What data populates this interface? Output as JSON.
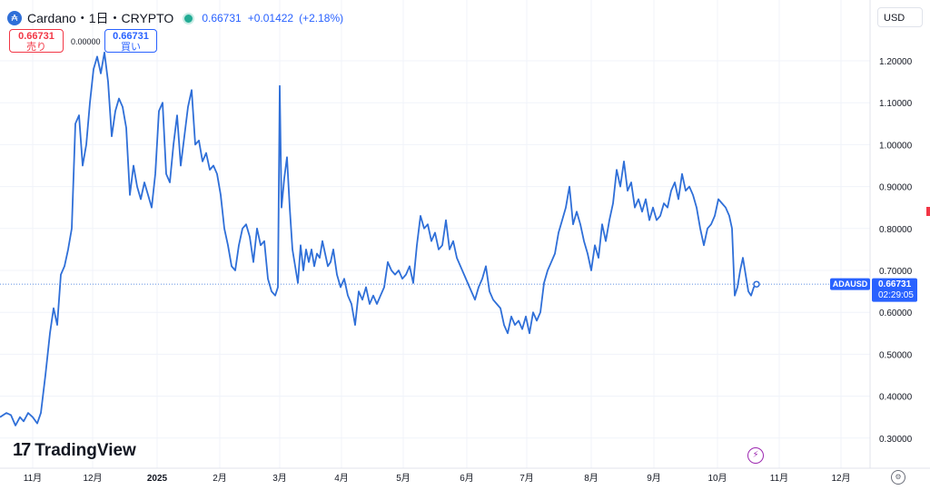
{
  "header": {
    "symbol": "Cardano・1日・CRYPTO",
    "last_price": "0.66731",
    "change": "+0.01422",
    "change_pct": "(+2.18%)",
    "coin_icon": "cardano-icon"
  },
  "trade": {
    "sell_price": "0.66731",
    "sell_label": "売り",
    "spread": "0.00000",
    "buy_price": "0.66731",
    "buy_label": "買い"
  },
  "currency": "USD",
  "brand": "TradingView",
  "price_label": {
    "ticker": "ADAUSD",
    "price": "0.66731",
    "countdown": "02:29:05"
  },
  "colors": {
    "line": "#2f6fd8",
    "accent": "#2962ff",
    "sell": "#f23645",
    "live": "#22ab94"
  },
  "chart_data": {
    "type": "line",
    "series": [
      {
        "values": [
          [
            0,
            0.35
          ],
          [
            7,
            0.36
          ],
          [
            12,
            0.355
          ],
          [
            17,
            0.33
          ],
          [
            22,
            0.35
          ],
          [
            26,
            0.34
          ],
          [
            31,
            0.36
          ],
          [
            36,
            0.35
          ],
          [
            41,
            0.335
          ],
          [
            45,
            0.36
          ],
          [
            50,
            0.45
          ],
          [
            55,
            0.55
          ],
          [
            59,
            0.61
          ],
          [
            63,
            0.57
          ],
          [
            67,
            0.69
          ],
          [
            71,
            0.71
          ],
          [
            75,
            0.75
          ],
          [
            79,
            0.8
          ],
          [
            83,
            1.05
          ],
          [
            87,
            1.07
          ],
          [
            91,
            0.95
          ],
          [
            95,
            1.0
          ],
          [
            99,
            1.1
          ],
          [
            103,
            1.18
          ],
          [
            107,
            1.21
          ],
          [
            111,
            1.17
          ],
          [
            115,
            1.22
          ],
          [
            119,
            1.15
          ],
          [
            123,
            1.02
          ],
          [
            127,
            1.08
          ],
          [
            131,
            1.11
          ],
          [
            135,
            1.09
          ],
          [
            139,
            1.04
          ],
          [
            143,
            0.88
          ],
          [
            147,
            0.95
          ],
          [
            151,
            0.9
          ],
          [
            155,
            0.87
          ],
          [
            159,
            0.91
          ],
          [
            163,
            0.88
          ],
          [
            167,
            0.85
          ],
          [
            171,
            0.93
          ],
          [
            175,
            1.08
          ],
          [
            179,
            1.1
          ],
          [
            183,
            0.93
          ],
          [
            187,
            0.91
          ],
          [
            191,
            1.0
          ],
          [
            195,
            1.07
          ],
          [
            199,
            0.95
          ],
          [
            203,
            1.02
          ],
          [
            207,
            1.09
          ],
          [
            211,
            1.13
          ],
          [
            215,
            1.0
          ],
          [
            219,
            1.01
          ],
          [
            223,
            0.96
          ],
          [
            227,
            0.98
          ],
          [
            231,
            0.94
          ],
          [
            235,
            0.95
          ],
          [
            239,
            0.93
          ],
          [
            243,
            0.88
          ],
          [
            247,
            0.8
          ],
          [
            251,
            0.76
          ],
          [
            255,
            0.71
          ],
          [
            259,
            0.7
          ],
          [
            263,
            0.76
          ],
          [
            267,
            0.8
          ],
          [
            271,
            0.81
          ],
          [
            275,
            0.78
          ],
          [
            279,
            0.72
          ],
          [
            283,
            0.8
          ],
          [
            287,
            0.76
          ],
          [
            291,
            0.77
          ],
          [
            295,
            0.68
          ],
          [
            299,
            0.65
          ],
          [
            303,
            0.64
          ],
          [
            306,
            0.66
          ],
          [
            308,
            1.14
          ],
          [
            310,
            0.85
          ],
          [
            313,
            0.92
          ],
          [
            316,
            0.97
          ],
          [
            319,
            0.85
          ],
          [
            322,
            0.75
          ],
          [
            325,
            0.71
          ],
          [
            328,
            0.67
          ],
          [
            331,
            0.76
          ],
          [
            334,
            0.7
          ],
          [
            337,
            0.75
          ],
          [
            340,
            0.72
          ],
          [
            343,
            0.75
          ],
          [
            346,
            0.71
          ],
          [
            349,
            0.74
          ],
          [
            352,
            0.73
          ],
          [
            355,
            0.77
          ],
          [
            358,
            0.74
          ],
          [
            361,
            0.71
          ],
          [
            364,
            0.72
          ],
          [
            367,
            0.75
          ],
          [
            371,
            0.69
          ],
          [
            375,
            0.66
          ],
          [
            379,
            0.68
          ],
          [
            383,
            0.64
          ],
          [
            387,
            0.62
          ],
          [
            391,
            0.57
          ],
          [
            395,
            0.65
          ],
          [
            399,
            0.63
          ],
          [
            403,
            0.66
          ],
          [
            407,
            0.62
          ],
          [
            411,
            0.64
          ],
          [
            415,
            0.62
          ],
          [
            419,
            0.64
          ],
          [
            423,
            0.66
          ],
          [
            427,
            0.72
          ],
          [
            431,
            0.7
          ],
          [
            435,
            0.69
          ],
          [
            439,
            0.7
          ],
          [
            443,
            0.68
          ],
          [
            447,
            0.69
          ],
          [
            451,
            0.71
          ],
          [
            455,
            0.67
          ],
          [
            459,
            0.76
          ],
          [
            463,
            0.83
          ],
          [
            467,
            0.8
          ],
          [
            471,
            0.81
          ],
          [
            475,
            0.77
          ],
          [
            479,
            0.79
          ],
          [
            483,
            0.75
          ],
          [
            487,
            0.76
          ],
          [
            491,
            0.82
          ],
          [
            495,
            0.75
          ],
          [
            499,
            0.77
          ],
          [
            503,
            0.73
          ],
          [
            507,
            0.71
          ],
          [
            511,
            0.69
          ],
          [
            515,
            0.67
          ],
          [
            519,
            0.65
          ],
          [
            523,
            0.63
          ],
          [
            527,
            0.66
          ],
          [
            531,
            0.68
          ],
          [
            535,
            0.71
          ],
          [
            539,
            0.65
          ],
          [
            543,
            0.63
          ],
          [
            547,
            0.62
          ],
          [
            551,
            0.61
          ],
          [
            555,
            0.57
          ],
          [
            559,
            0.55
          ],
          [
            563,
            0.59
          ],
          [
            567,
            0.57
          ],
          [
            571,
            0.58
          ],
          [
            575,
            0.56
          ],
          [
            579,
            0.59
          ],
          [
            583,
            0.55
          ],
          [
            587,
            0.6
          ],
          [
            591,
            0.58
          ],
          [
            595,
            0.6
          ],
          [
            599,
            0.67
          ],
          [
            603,
            0.7
          ],
          [
            607,
            0.72
          ],
          [
            611,
            0.74
          ],
          [
            615,
            0.79
          ],
          [
            619,
            0.82
          ],
          [
            623,
            0.85
          ],
          [
            627,
            0.9
          ],
          [
            631,
            0.81
          ],
          [
            635,
            0.84
          ],
          [
            639,
            0.81
          ],
          [
            643,
            0.77
          ],
          [
            647,
            0.74
          ],
          [
            651,
            0.7
          ],
          [
            655,
            0.76
          ],
          [
            659,
            0.73
          ],
          [
            663,
            0.81
          ],
          [
            667,
            0.77
          ],
          [
            671,
            0.82
          ],
          [
            675,
            0.86
          ],
          [
            679,
            0.94
          ],
          [
            683,
            0.9
          ],
          [
            687,
            0.96
          ],
          [
            691,
            0.89
          ],
          [
            695,
            0.91
          ],
          [
            699,
            0.85
          ],
          [
            703,
            0.87
          ],
          [
            707,
            0.84
          ],
          [
            711,
            0.87
          ],
          [
            715,
            0.82
          ],
          [
            719,
            0.85
          ],
          [
            723,
            0.82
          ],
          [
            727,
            0.83
          ],
          [
            731,
            0.86
          ],
          [
            735,
            0.85
          ],
          [
            739,
            0.89
          ],
          [
            743,
            0.91
          ],
          [
            747,
            0.87
          ],
          [
            751,
            0.93
          ],
          [
            755,
            0.89
          ],
          [
            759,
            0.9
          ],
          [
            763,
            0.88
          ],
          [
            767,
            0.85
          ],
          [
            771,
            0.8
          ],
          [
            775,
            0.76
          ],
          [
            779,
            0.8
          ],
          [
            783,
            0.81
          ],
          [
            787,
            0.83
          ],
          [
            791,
            0.87
          ],
          [
            795,
            0.86
          ],
          [
            799,
            0.85
          ],
          [
            803,
            0.83
          ],
          [
            806,
            0.8
          ],
          [
            809,
            0.64
          ],
          [
            812,
            0.66
          ],
          [
            815,
            0.7
          ],
          [
            818,
            0.73
          ],
          [
            821,
            0.69
          ],
          [
            824,
            0.65
          ],
          [
            827,
            0.64
          ],
          [
            830,
            0.66
          ],
          [
            833,
            0.667
          ]
        ]
      }
    ],
    "y_ticks": [
      "1.20000",
      "1.10000",
      "1.00000",
      "0.90000",
      "0.80000",
      "0.70000",
      "0.60000",
      "0.50000",
      "0.40000",
      "0.30000"
    ],
    "y_tick_values": [
      1.2,
      1.1,
      1.0,
      0.9,
      0.8,
      0.7,
      0.6,
      0.5,
      0.4,
      0.3
    ],
    "x_ticks": [
      "11月",
      "12月",
      "2025",
      "2月",
      "3月",
      "4月",
      "5月",
      "6月",
      "7月",
      "8月",
      "9月",
      "10月",
      "11月",
      "12月"
    ],
    "grid": true,
    "current_price": 0.66731
  }
}
